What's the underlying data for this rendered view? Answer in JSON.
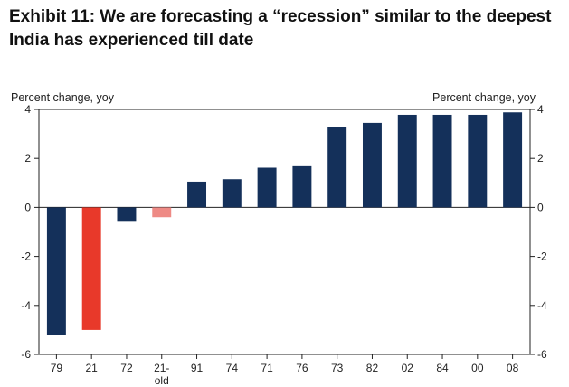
{
  "header": {
    "title_line1": "Exhibit 11: We are forecasting a “recession” similar to the deepest",
    "title_line2": "India has experienced till date"
  },
  "chart_data": {
    "type": "bar",
    "title": "Exhibit 11: We are forecasting a “recession” similar to the deepest India has experienced till date",
    "ylabel_left": "Percent change, yoy",
    "ylabel_right": "Percent change, yoy",
    "ylim": [
      -6,
      4
    ],
    "yticks": [
      4,
      2,
      0,
      -2,
      -4,
      -6
    ],
    "categories": [
      "79",
      "21",
      "72",
      "21-old",
      "91",
      "74",
      "71",
      "76",
      "73",
      "82",
      "02",
      "84",
      "00",
      "08"
    ],
    "category_labels": [
      [
        "79"
      ],
      [
        "21"
      ],
      [
        "72"
      ],
      [
        "21-",
        "old"
      ],
      [
        "91"
      ],
      [
        "74"
      ],
      [
        "71"
      ],
      [
        "76"
      ],
      [
        "73"
      ],
      [
        "82"
      ],
      [
        "02"
      ],
      [
        "84"
      ],
      [
        "00"
      ],
      [
        "08"
      ]
    ],
    "values": [
      -5.2,
      -5.0,
      -0.55,
      -0.4,
      1.05,
      1.15,
      1.62,
      1.68,
      3.28,
      3.45,
      3.78,
      3.78,
      3.78,
      3.88
    ],
    "colors": [
      "#14305a",
      "#e8392a",
      "#14305a",
      "#ee8a85",
      "#14305a",
      "#14305a",
      "#14305a",
      "#14305a",
      "#14305a",
      "#14305a",
      "#14305a",
      "#14305a",
      "#14305a",
      "#14305a"
    ],
    "grid": false,
    "legend": "none"
  }
}
